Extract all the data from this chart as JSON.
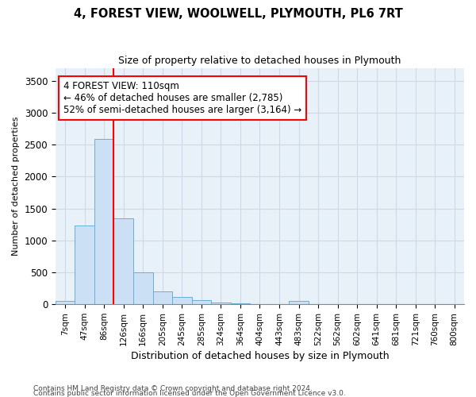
{
  "title1": "4, FOREST VIEW, WOOLWELL, PLYMOUTH, PL6 7RT",
  "title2": "Size of property relative to detached houses in Plymouth",
  "xlabel": "Distribution of detached houses by size in Plymouth",
  "ylabel": "Number of detached properties",
  "bar_labels": [
    "7sqm",
    "47sqm",
    "86sqm",
    "126sqm",
    "166sqm",
    "205sqm",
    "245sqm",
    "285sqm",
    "324sqm",
    "364sqm",
    "404sqm",
    "443sqm",
    "483sqm",
    "522sqm",
    "562sqm",
    "602sqm",
    "641sqm",
    "681sqm",
    "721sqm",
    "760sqm",
    "800sqm"
  ],
  "bar_values": [
    50,
    1230,
    2590,
    1350,
    500,
    200,
    120,
    70,
    30,
    10,
    5,
    5,
    50,
    0,
    0,
    0,
    0,
    0,
    0,
    0,
    0
  ],
  "bar_color": "#cce0f5",
  "bar_edge_color": "#6aaed6",
  "grid_color": "#ccd9e8",
  "background_color": "#e8f0f8",
  "vline_color": "red",
  "vline_index": 2,
  "annotation_text": "4 FOREST VIEW: 110sqm\n← 46% of detached houses are smaller (2,785)\n52% of semi-detached houses are larger (3,164) →",
  "annotation_box_color": "white",
  "annotation_box_edge": "red",
  "ylim": [
    0,
    3700
  ],
  "yticks": [
    0,
    500,
    1000,
    1500,
    2000,
    2500,
    3000,
    3500
  ],
  "title1_fontsize": 10.5,
  "title2_fontsize": 9,
  "footer1": "Contains HM Land Registry data © Crown copyright and database right 2024.",
  "footer2": "Contains public sector information licensed under the Open Government Licence v3.0."
}
